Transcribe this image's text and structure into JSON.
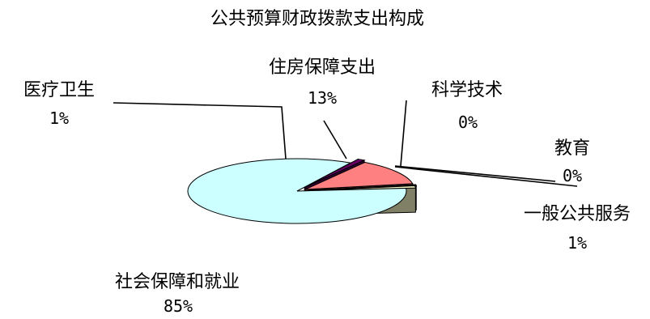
{
  "chart_data": {
    "type": "pie",
    "style": "3d-exploded",
    "title": "公共预算财政拨款支出构成",
    "slices": [
      {
        "label": "社会保障和就业",
        "value": 85,
        "value_label": "85%",
        "color": "#ccffff",
        "side_color": "#607f7f"
      },
      {
        "label": "医疗卫生",
        "value": 1,
        "value_label": "1%",
        "color": "#660066",
        "side_color": "#330033"
      },
      {
        "label": "住房保障支出",
        "value": 13,
        "value_label": "13%",
        "color": "#ff8080",
        "side_color": "#804040"
      },
      {
        "label": "科学技术",
        "value": 0,
        "value_label": "0%",
        "color": "#ccccff",
        "side_color": "#666680"
      },
      {
        "label": "教育",
        "value": 0,
        "value_label": "0%",
        "color": "#993366",
        "side_color": "#4d1a33"
      },
      {
        "label": "一般公共服务",
        "value": 1,
        "value_label": "1%",
        "color": "#ffffcc",
        "side_color": "#808066"
      }
    ]
  }
}
